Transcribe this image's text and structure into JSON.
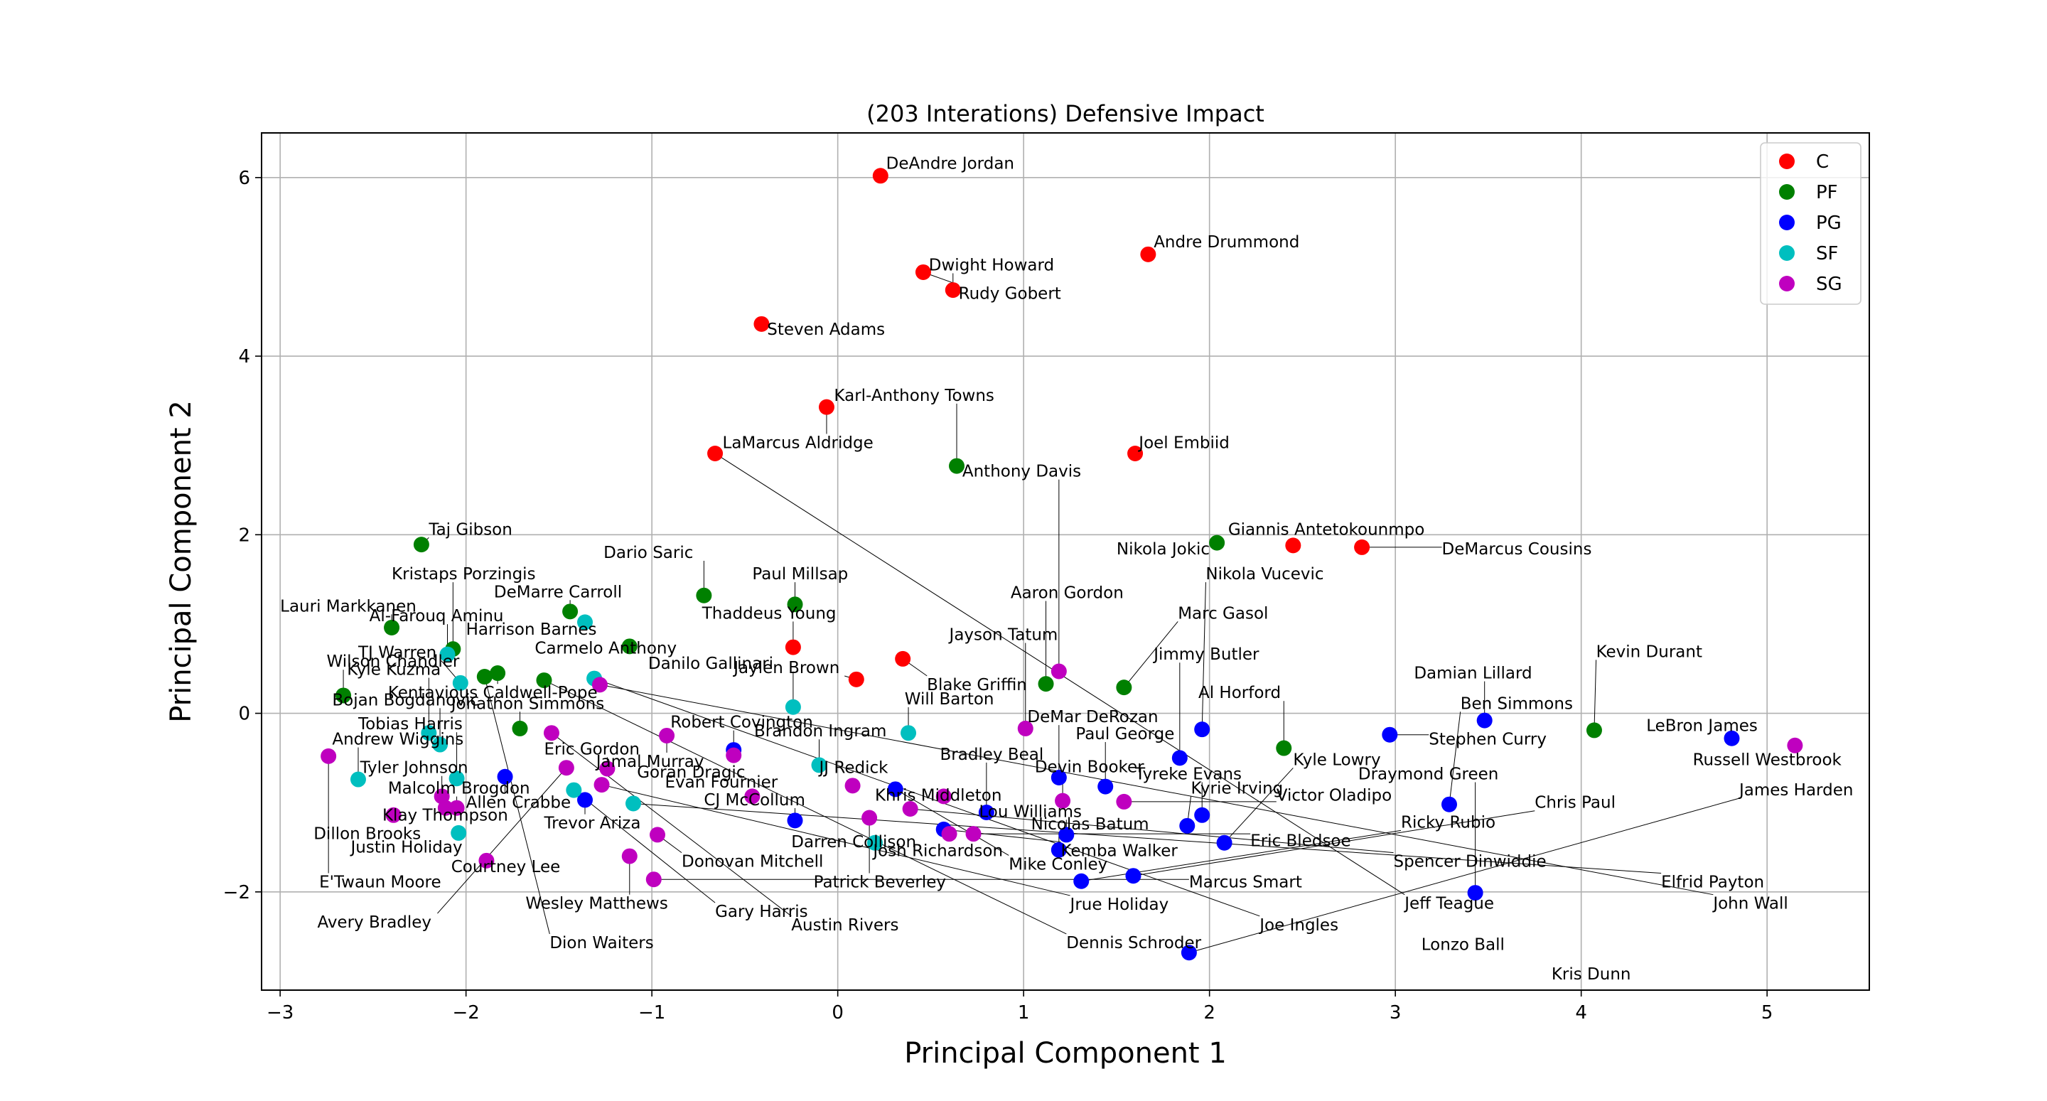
{
  "chart_data": {
    "type": "scatter",
    "title": "(203 Interations) Defensive Impact",
    "xlabel": "Principal Component 1",
    "ylabel": "Principal Component 2",
    "xlim": [
      -3.1,
      5.55
    ],
    "ylim": [
      -3.1,
      6.5
    ],
    "xticks": [
      -3,
      -2,
      -1,
      0,
      1,
      2,
      3,
      4,
      5
    ],
    "yticks": [
      -2,
      0,
      2,
      4,
      6
    ],
    "xtick_labels": [
      "−3",
      "−2",
      "−1",
      "0",
      "1",
      "2",
      "3",
      "4",
      "5"
    ],
    "ytick_labels": [
      "−2",
      "0",
      "2",
      "4",
      "6"
    ],
    "grid": true,
    "legend_position": "top-right",
    "legend": [
      {
        "name": "C",
        "color": "#ff0000"
      },
      {
        "name": "PF",
        "color": "#008000"
      },
      {
        "name": "PG",
        "color": "#0000ff"
      },
      {
        "name": "SF",
        "color": "#00bfbf"
      },
      {
        "name": "SG",
        "color": "#bf00bf"
      }
    ],
    "points": [
      {
        "pos": "C",
        "x": 0.23,
        "y": 6.02
      },
      {
        "pos": "C",
        "x": 1.67,
        "y": 5.14
      },
      {
        "pos": "C",
        "x": 0.46,
        "y": 4.94
      },
      {
        "pos": "C",
        "x": 0.62,
        "y": 4.74
      },
      {
        "pos": "C",
        "x": -0.41,
        "y": 4.36
      },
      {
        "pos": "C",
        "x": -0.06,
        "y": 3.43
      },
      {
        "pos": "C",
        "x": -0.66,
        "y": 2.91
      },
      {
        "pos": "C",
        "x": 1.6,
        "y": 2.91
      },
      {
        "pos": "C",
        "x": 2.45,
        "y": 1.88
      },
      {
        "pos": "C",
        "x": 2.82,
        "y": 1.86
      },
      {
        "pos": "C",
        "x": -0.24,
        "y": 0.74
      },
      {
        "pos": "C",
        "x": 0.35,
        "y": 0.61
      },
      {
        "pos": "C",
        "x": 0.1,
        "y": 0.38
      },
      {
        "pos": "PF",
        "x": 0.64,
        "y": 2.77
      },
      {
        "pos": "PF",
        "x": 2.04,
        "y": 1.91
      },
      {
        "pos": "PF",
        "x": -2.24,
        "y": 1.89
      },
      {
        "pos": "PF",
        "x": -0.72,
        "y": 1.32
      },
      {
        "pos": "PF",
        "x": -0.23,
        "y": 1.22
      },
      {
        "pos": "PF",
        "x": -1.44,
        "y": 1.14
      },
      {
        "pos": "PF",
        "x": -2.4,
        "y": 0.96
      },
      {
        "pos": "PF",
        "x": -2.07,
        "y": 0.72
      },
      {
        "pos": "PF",
        "x": -1.12,
        "y": 0.75
      },
      {
        "pos": "PF",
        "x": -1.83,
        "y": 0.45
      },
      {
        "pos": "PF",
        "x": -1.9,
        "y": 0.41
      },
      {
        "pos": "PF",
        "x": -1.58,
        "y": 0.37
      },
      {
        "pos": "PF",
        "x": 1.12,
        "y": 0.33
      },
      {
        "pos": "PF",
        "x": 1.54,
        "y": 0.29
      },
      {
        "pos": "PF",
        "x": -2.66,
        "y": 0.2
      },
      {
        "pos": "PF",
        "x": -1.71,
        "y": -0.17
      },
      {
        "pos": "PF",
        "x": 2.4,
        "y": -0.39
      },
      {
        "pos": "PF",
        "x": 4.07,
        "y": -0.19
      },
      {
        "pos": "PG",
        "x": 1.96,
        "y": -0.18
      },
      {
        "pos": "PG",
        "x": 2.97,
        "y": -0.24
      },
      {
        "pos": "PG",
        "x": 3.48,
        "y": -0.08
      },
      {
        "pos": "PG",
        "x": 4.81,
        "y": -0.28
      },
      {
        "pos": "PG",
        "x": -0.56,
        "y": -0.41
      },
      {
        "pos": "PG",
        "x": 1.84,
        "y": -0.5
      },
      {
        "pos": "PG",
        "x": -1.79,
        "y": -0.71
      },
      {
        "pos": "PG",
        "x": 1.19,
        "y": -0.72
      },
      {
        "pos": "PG",
        "x": 1.44,
        "y": -0.82
      },
      {
        "pos": "PG",
        "x": 0.31,
        "y": -0.85
      },
      {
        "pos": "PG",
        "x": -1.36,
        "y": -0.97
      },
      {
        "pos": "PG",
        "x": 3.29,
        "y": -1.02
      },
      {
        "pos": "PG",
        "x": 0.8,
        "y": -1.11
      },
      {
        "pos": "PG",
        "x": 1.96,
        "y": -1.14
      },
      {
        "pos": "PG",
        "x": -0.23,
        "y": -1.2
      },
      {
        "pos": "PG",
        "x": 1.88,
        "y": -1.26
      },
      {
        "pos": "PG",
        "x": 0.57,
        "y": -1.3
      },
      {
        "pos": "PG",
        "x": 1.23,
        "y": -1.36
      },
      {
        "pos": "PG",
        "x": 2.08,
        "y": -1.45
      },
      {
        "pos": "PG",
        "x": 1.19,
        "y": -1.53
      },
      {
        "pos": "PG",
        "x": 1.59,
        "y": -1.82
      },
      {
        "pos": "PG",
        "x": 1.31,
        "y": -1.88
      },
      {
        "pos": "PG",
        "x": 3.43,
        "y": -2.01
      },
      {
        "pos": "PG",
        "x": 1.89,
        "y": -2.68
      },
      {
        "pos": "SF",
        "x": -1.36,
        "y": 1.02
      },
      {
        "pos": "SF",
        "x": -2.1,
        "y": 0.66
      },
      {
        "pos": "SF",
        "x": -2.03,
        "y": 0.34
      },
      {
        "pos": "SF",
        "x": -1.31,
        "y": 0.39
      },
      {
        "pos": "SF",
        "x": -0.24,
        "y": 0.07
      },
      {
        "pos": "SF",
        "x": -2.2,
        "y": -0.22
      },
      {
        "pos": "SF",
        "x": -2.14,
        "y": -0.35
      },
      {
        "pos": "SF",
        "x": 0.38,
        "y": -0.22
      },
      {
        "pos": "SF",
        "x": -0.1,
        "y": -0.58
      },
      {
        "pos": "SF",
        "x": -2.05,
        "y": -0.73
      },
      {
        "pos": "SF",
        "x": -2.58,
        "y": -0.74
      },
      {
        "pos": "SF",
        "x": -1.42,
        "y": -0.86
      },
      {
        "pos": "SF",
        "x": -1.1,
        "y": -1.01
      },
      {
        "pos": "SF",
        "x": -2.04,
        "y": -1.34
      },
      {
        "pos": "SF",
        "x": 0.2,
        "y": -1.45
      },
      {
        "pos": "SG",
        "x": -1.28,
        "y": 0.32
      },
      {
        "pos": "SG",
        "x": 1.19,
        "y": 0.47
      },
      {
        "pos": "SG",
        "x": -1.54,
        "y": -0.22
      },
      {
        "pos": "SG",
        "x": -0.92,
        "y": -0.25
      },
      {
        "pos": "SG",
        "x": 1.01,
        "y": -0.17
      },
      {
        "pos": "SG",
        "x": -2.74,
        "y": -0.48
      },
      {
        "pos": "SG",
        "x": -0.56,
        "y": -0.47
      },
      {
        "pos": "SG",
        "x": -1.46,
        "y": -0.61
      },
      {
        "pos": "SG",
        "x": -1.24,
        "y": -0.62
      },
      {
        "pos": "SG",
        "x": 5.15,
        "y": -0.36
      },
      {
        "pos": "SG",
        "x": 0.08,
        "y": -0.81
      },
      {
        "pos": "SG",
        "x": -1.27,
        "y": -0.8
      },
      {
        "pos": "SG",
        "x": -2.13,
        "y": -0.93
      },
      {
        "pos": "SG",
        "x": -0.46,
        "y": -0.93
      },
      {
        "pos": "SG",
        "x": 0.57,
        "y": -0.93
      },
      {
        "pos": "SG",
        "x": 1.21,
        "y": -0.98
      },
      {
        "pos": "SG",
        "x": 1.54,
        "y": -0.99
      },
      {
        "pos": "SG",
        "x": -2.11,
        "y": -1.06
      },
      {
        "pos": "SG",
        "x": -2.05,
        "y": -1.06
      },
      {
        "pos": "SG",
        "x": 0.39,
        "y": -1.07
      },
      {
        "pos": "SG",
        "x": -2.39,
        "y": -1.14
      },
      {
        "pos": "SG",
        "x": 0.17,
        "y": -1.17
      },
      {
        "pos": "SG",
        "x": -0.97,
        "y": -1.36
      },
      {
        "pos": "SG",
        "x": 0.6,
        "y": -1.35
      },
      {
        "pos": "SG",
        "x": 0.73,
        "y": -1.35
      },
      {
        "pos": "SG",
        "x": -1.12,
        "y": -1.6
      },
      {
        "pos": "SG",
        "x": -1.89,
        "y": -1.65
      },
      {
        "pos": "SG",
        "x": -0.99,
        "y": -1.86
      }
    ],
    "annotations": [
      {
        "text": "DeAndre Jordan",
        "x": 0.26,
        "y": 6.1
      },
      {
        "text": "Andre Drummond",
        "x": 1.7,
        "y": 5.22
      },
      {
        "text": "Dwight Howard",
        "x": 0.49,
        "y": 4.96
      },
      {
        "text": "Rudy Gobert",
        "x": 0.65,
        "y": 4.64
      },
      {
        "text": "Steven Adams",
        "x": -0.38,
        "y": 4.24
      },
      {
        "text": "Karl-Anthony Towns",
        "x": -0.02,
        "y": 3.5
      },
      {
        "text": "LaMarcus Aldridge",
        "x": -0.62,
        "y": 2.97
      },
      {
        "text": "Joel Embiid",
        "x": 1.62,
        "y": 2.97
      },
      {
        "text": "Anthony Davis",
        "x": 0.67,
        "y": 2.65
      },
      {
        "text": "Giannis Antetokounmpo",
        "x": 2.1,
        "y": 2.0
      },
      {
        "text": "Nikola Jokic",
        "x": 1.5,
        "y": 1.78
      },
      {
        "text": "DeMarcus Cousins",
        "x": 3.25,
        "y": 1.78
      },
      {
        "text": "Taj Gibson",
        "x": -2.2,
        "y": 2.0
      },
      {
        "text": "Dario Saric",
        "x": -1.26,
        "y": 1.74
      },
      {
        "text": "Kristaps Porzingis",
        "x": -2.4,
        "y": 1.5
      },
      {
        "text": "Paul Millsap",
        "x": -0.46,
        "y": 1.5
      },
      {
        "text": "DeMarre Carroll",
        "x": -1.85,
        "y": 1.3
      },
      {
        "text": "Nikola Vucevic",
        "x": 1.98,
        "y": 1.5
      },
      {
        "text": "Aaron Gordon",
        "x": 0.93,
        "y": 1.29
      },
      {
        "text": "Lauri Markkanen",
        "x": -3.0,
        "y": 1.14
      },
      {
        "text": "Thaddeus Young",
        "x": -0.73,
        "y": 1.06
      },
      {
        "text": "Al-Farouq Aminu",
        "x": -2.52,
        "y": 1.03
      },
      {
        "text": "Marc Gasol",
        "x": 1.83,
        "y": 1.06
      },
      {
        "text": "Harrison Barnes",
        "x": -2.0,
        "y": 0.88
      },
      {
        "text": "Jayson Tatum",
        "x": 0.6,
        "y": 0.82
      },
      {
        "text": "Carmelo Anthony",
        "x": -1.63,
        "y": 0.67
      },
      {
        "text": "Jimmy Butler",
        "x": 1.7,
        "y": 0.6
      },
      {
        "text": "TJ Warren",
        "x": -2.58,
        "y": 0.62
      },
      {
        "text": "Wilson Chandler",
        "x": -2.75,
        "y": 0.52
      },
      {
        "text": "Danilo Gallinari",
        "x": -1.02,
        "y": 0.5
      },
      {
        "text": "Kevin Durant",
        "x": 4.08,
        "y": 0.63
      },
      {
        "text": "Kyle Kuzma",
        "x": -2.64,
        "y": 0.43
      },
      {
        "text": "Jaylen Brown",
        "x": -0.56,
        "y": 0.45
      },
      {
        "text": "Damian Lillard",
        "x": 3.1,
        "y": 0.39
      },
      {
        "text": "Blake Griffin",
        "x": 0.48,
        "y": 0.26
      },
      {
        "text": "Kentavious Caldwell-Pope",
        "x": -2.42,
        "y": 0.17
      },
      {
        "text": "Al Horford",
        "x": 1.94,
        "y": 0.17
      },
      {
        "text": "Bojan Bogdanovic",
        "x": -2.72,
        "y": 0.09
      },
      {
        "text": "Jonathon Simmons",
        "x": -2.08,
        "y": 0.05
      },
      {
        "text": "Will Barton",
        "x": 0.36,
        "y": 0.1
      },
      {
        "text": "Ben Simmons",
        "x": 3.35,
        "y": 0.05
      },
      {
        "text": "DeMar DeRozan",
        "x": 1.02,
        "y": -0.1
      },
      {
        "text": "Robert Covington",
        "x": -0.9,
        "y": -0.16
      },
      {
        "text": "Tobias Harris",
        "x": -2.58,
        "y": -0.18
      },
      {
        "text": "Brandon Ingram",
        "x": -0.45,
        "y": -0.26
      },
      {
        "text": "LeBron James",
        "x": 4.35,
        "y": -0.2
      },
      {
        "text": "Paul George",
        "x": 1.28,
        "y": -0.29
      },
      {
        "text": "Andrew Wiggins",
        "x": -2.72,
        "y": -0.35
      },
      {
        "text": "Stephen Curry",
        "x": 3.18,
        "y": -0.35
      },
      {
        "text": "Eric Gordon",
        "x": -1.58,
        "y": -0.46
      },
      {
        "text": "Bradley Beal",
        "x": 0.55,
        "y": -0.52
      },
      {
        "text": "Russell Westbrook",
        "x": 4.6,
        "y": -0.58
      },
      {
        "text": "Jamal Murray",
        "x": -1.3,
        "y": -0.6
      },
      {
        "text": "Kyle Lowry",
        "x": 2.45,
        "y": -0.58
      },
      {
        "text": "Tyler Johnson",
        "x": -2.57,
        "y": -0.67
      },
      {
        "text": "Devin Booker",
        "x": 1.06,
        "y": -0.66
      },
      {
        "text": "JJ Redick",
        "x": -0.1,
        "y": -0.67
      },
      {
        "text": "Goran Dragic",
        "x": -1.08,
        "y": -0.72
      },
      {
        "text": "Tyreke Evans",
        "x": 1.6,
        "y": -0.74
      },
      {
        "text": "Draymond Green",
        "x": 2.8,
        "y": -0.74
      },
      {
        "text": "Evan Fournier",
        "x": -0.93,
        "y": -0.83
      },
      {
        "text": "Kyrie Irving",
        "x": 1.9,
        "y": -0.9
      },
      {
        "text": "James Harden",
        "x": 4.85,
        "y": -0.92
      },
      {
        "text": "Malcolm Brogdon",
        "x": -2.42,
        "y": -0.9
      },
      {
        "text": "Khris Middleton",
        "x": 0.2,
        "y": -0.98
      },
      {
        "text": "Victor Oladipo",
        "x": 2.36,
        "y": -0.98
      },
      {
        "text": "CJ McCollum",
        "x": -0.72,
        "y": -1.03
      },
      {
        "text": "Chris Paul",
        "x": 3.75,
        "y": -1.06
      },
      {
        "text": "Allen Crabbe",
        "x": -2.0,
        "y": -1.06
      },
      {
        "text": "Lou Williams",
        "x": 0.76,
        "y": -1.16
      },
      {
        "text": "Klay Thompson",
        "x": -2.45,
        "y": -1.2
      },
      {
        "text": "Ricky Rubio",
        "x": 3.03,
        "y": -1.28
      },
      {
        "text": "Trevor Ariza",
        "x": -1.58,
        "y": -1.29
      },
      {
        "text": "Nicolas Batum",
        "x": 1.04,
        "y": -1.3
      },
      {
        "text": "Dillon Brooks",
        "x": -2.82,
        "y": -1.41
      },
      {
        "text": "Eric Bledsoe",
        "x": 2.22,
        "y": -1.49
      },
      {
        "text": "Darren Collison",
        "x": -0.25,
        "y": -1.5
      },
      {
        "text": "Justin Holiday",
        "x": -2.62,
        "y": -1.56
      },
      {
        "text": "Josh Richardson",
        "x": 0.19,
        "y": -1.6
      },
      {
        "text": "Kemba Walker",
        "x": 1.2,
        "y": -1.6
      },
      {
        "text": "Donovan Mitchell",
        "x": -0.84,
        "y": -1.72
      },
      {
        "text": "Spencer Dinwiddie",
        "x": 2.99,
        "y": -1.72
      },
      {
        "text": "Courtney Lee",
        "x": -2.08,
        "y": -1.78
      },
      {
        "text": "Mike Conley",
        "x": 0.92,
        "y": -1.75
      },
      {
        "text": "Patrick Beverley",
        "x": -0.13,
        "y": -1.95
      },
      {
        "text": "Marcus Smart",
        "x": 1.89,
        "y": -1.95
      },
      {
        "text": "Elfrid Payton",
        "x": 4.43,
        "y": -1.95
      },
      {
        "text": "E'Twaun Moore",
        "x": -2.79,
        "y": -1.95
      },
      {
        "text": "Wesley Matthews",
        "x": -1.68,
        "y": -2.19
      },
      {
        "text": "Jrue Holiday",
        "x": 1.25,
        "y": -2.2
      },
      {
        "text": "Jeff Teague",
        "x": 3.05,
        "y": -2.19
      },
      {
        "text": "John Wall",
        "x": 4.71,
        "y": -2.19
      },
      {
        "text": "Gary Harris",
        "x": -0.66,
        "y": -2.28
      },
      {
        "text": "Avery Bradley",
        "x": -2.8,
        "y": -2.4
      },
      {
        "text": "Joe Ingles",
        "x": 2.27,
        "y": -2.43
      },
      {
        "text": "Austin Rivers",
        "x": -0.25,
        "y": -2.43
      },
      {
        "text": "Dennis Schroder",
        "x": 1.23,
        "y": -2.63
      },
      {
        "text": "Dion Waiters",
        "x": -1.55,
        "y": -2.63
      },
      {
        "text": "Lonzo Ball",
        "x": 3.14,
        "y": -2.65
      },
      {
        "text": "Kris Dunn",
        "x": 3.84,
        "y": -2.98
      }
    ]
  }
}
